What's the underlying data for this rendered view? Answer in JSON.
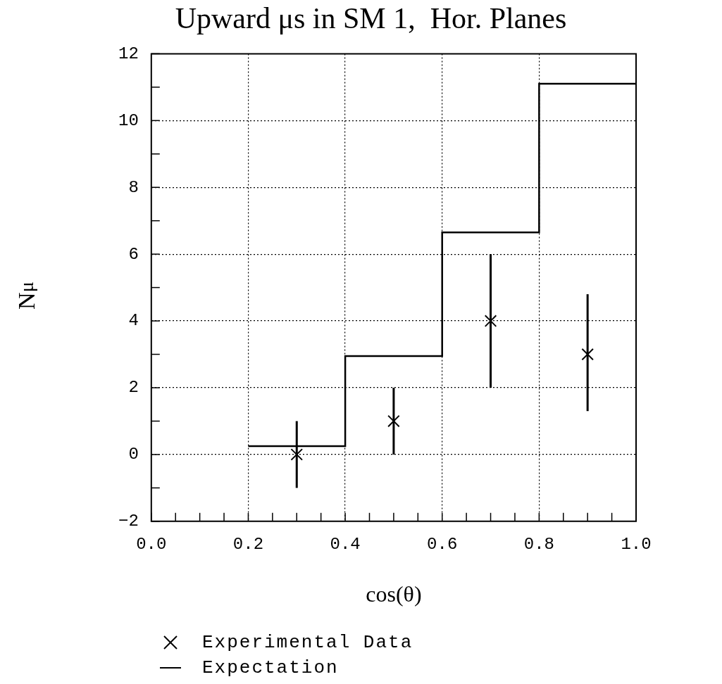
{
  "chart_data": {
    "type": "scatter",
    "title": "Upward μs in SM 1,  Hor. Planes",
    "xlabel": "cos(θ)",
    "ylabel": "N$_{μ}$",
    "xlim": [
      0,
      1
    ],
    "ylim": [
      -2,
      12
    ],
    "xticks": [
      {
        "value": 0,
        "label": "0.0"
      },
      {
        "value": 0.05,
        "label": null
      },
      {
        "value": 0.1,
        "label": null
      },
      {
        "value": 0.15,
        "label": null
      },
      0.2,
      {
        "value": 0.25,
        "label": null
      },
      {
        "value": 0.3,
        "label": null
      },
      {
        "value": 0.35,
        "label": null
      },
      0.4,
      {
        "value": 0.45,
        "label": null
      },
      {
        "value": 0.5,
        "label": null
      },
      {
        "value": 0.55,
        "label": null
      },
      0.6,
      {
        "value": 0.65,
        "label": null
      },
      {
        "value": 0.7,
        "label": null
      },
      {
        "value": 0.75,
        "label": null
      },
      0.8,
      {
        "value": 0.85,
        "label": null
      },
      {
        "value": 0.9,
        "label": null
      },
      {
        "value": 0.95,
        "label": null
      },
      {
        "value": 1,
        "label": "1.0"
      }
    ],
    "yticks": [
      -2,
      {
        "value": -1,
        "label": null
      },
      0,
      {
        "value": 1,
        "label": null
      },
      2,
      {
        "value": 3,
        "label": null
      },
      4,
      {
        "value": 5,
        "label": null
      },
      6,
      {
        "value": 7,
        "label": null
      },
      8,
      {
        "value": 9,
        "label": null
      },
      10,
      {
        "value": 11,
        "label": null
      },
      12
    ],
    "grid": true,
    "legend": "bottom",
    "series": [
      {
        "name": "Experimental Data",
        "marker": "cross",
        "color": "#000000",
        "x": [
          0.3,
          0.5,
          0.7,
          0.9
        ],
        "values": [
          0,
          1,
          4,
          3
        ],
        "errors": [
          1,
          1,
          2,
          [
            1.3,
            4.8
          ]
        ]
      },
      {
        "name": "Expectation",
        "type": "step",
        "marker": "none",
        "color": "#000000",
        "x": [
          0.2,
          0.4,
          0.6,
          0.8,
          1.0
        ],
        "values": [
          0.25,
          2.95,
          6.65,
          11.1,
          11.1
        ]
      }
    ]
  }
}
